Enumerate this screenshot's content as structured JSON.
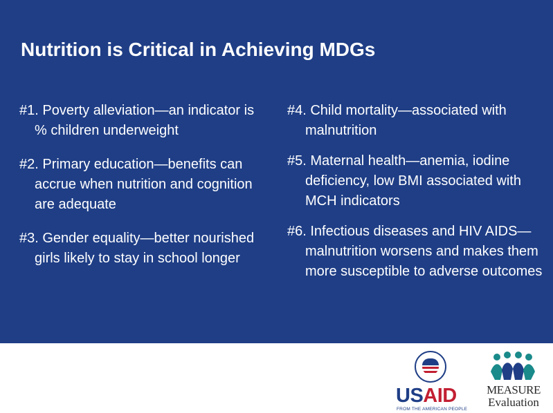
{
  "slide": {
    "title": "Nutrition is Critical in Achieving MDGs",
    "left_items": [
      "#1. Poverty alleviation—an indicator is % children underweight",
      "#2. Primary education—benefits can accrue when nutrition and cognition are adequate",
      "#3. Gender equality—better nourished girls likely to stay in school longer"
    ],
    "right_items": [
      "#4. Child mortality—associated with malnutrition",
      "#5. Maternal health—anemia, iodine deficiency, low BMI associated with MCH indicators",
      "#6. Infectious diseases and HIV AIDS—malnutrition worsens and makes them more susceptible to adverse outcomes"
    ]
  },
  "logos": {
    "usaid": {
      "word_us": "US",
      "word_aid": "AID",
      "tagline": "FROM THE AMERICAN PEOPLE",
      "seal_icon": "usaid-seal-icon"
    },
    "measure": {
      "name": "MEASURE",
      "sub": "Evaluation",
      "figures_icon": "people-figures-icon"
    }
  },
  "colors": {
    "panel_bg": "#1f3e86",
    "text": "#ffffff",
    "usaid_blue": "#1f3e86",
    "usaid_red": "#c21f32",
    "measure_teal": "#1a8a8a",
    "measure_navy": "#1f3e86"
  }
}
